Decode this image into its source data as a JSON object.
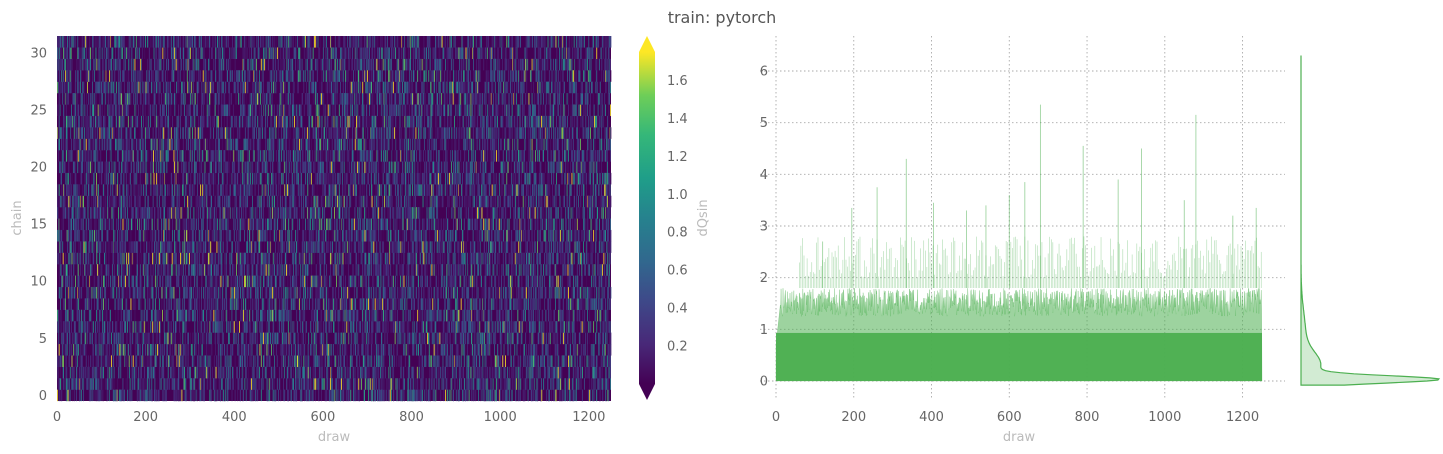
{
  "title": "train: pytorch",
  "colors": {
    "heat_low": "#440154",
    "trace": "#4caf50",
    "grid": "#aaaaaa"
  },
  "chart_data": [
    {
      "type": "heatmap",
      "xlabel": "draw",
      "ylabel": "chain",
      "xlim": [
        0,
        1250
      ],
      "ylim": [
        0,
        31
      ],
      "xticks": [
        0,
        200,
        400,
        600,
        800,
        1000,
        1200
      ],
      "yticks": [
        0,
        5,
        10,
        15,
        20,
        25,
        30
      ],
      "n_chains": 32,
      "n_draws": 1250,
      "colormap": "viridis",
      "colorbar": {
        "label": "dQsin",
        "range": [
          0,
          1.75
        ],
        "ticks": [
          0.2,
          0.4,
          0.6,
          0.8,
          1.0,
          1.2,
          1.4,
          1.6
        ],
        "extend": "both"
      }
    },
    {
      "type": "area",
      "xlabel": "draw",
      "ylabel": "",
      "xlim": [
        0,
        1250
      ],
      "ylim": [
        0,
        6.3
      ],
      "xticks": [
        0,
        200,
        400,
        600,
        800,
        1000,
        1200
      ],
      "yticks": [
        0,
        1,
        2,
        3,
        4,
        5,
        6
      ],
      "grid": true,
      "typical_range": [
        0,
        1.9
      ],
      "peaks": [
        {
          "x": 120,
          "y": 2.7
        },
        {
          "x": 195,
          "y": 3.35
        },
        {
          "x": 260,
          "y": 3.75
        },
        {
          "x": 335,
          "y": 4.3
        },
        {
          "x": 405,
          "y": 3.45
        },
        {
          "x": 490,
          "y": 3.3
        },
        {
          "x": 540,
          "y": 3.4
        },
        {
          "x": 600,
          "y": 3.6
        },
        {
          "x": 640,
          "y": 3.85
        },
        {
          "x": 680,
          "y": 5.35
        },
        {
          "x": 790,
          "y": 4.55
        },
        {
          "x": 880,
          "y": 3.9
        },
        {
          "x": 940,
          "y": 4.5
        },
        {
          "x": 1050,
          "y": 3.5
        },
        {
          "x": 1080,
          "y": 5.15
        },
        {
          "x": 1175,
          "y": 3.2
        },
        {
          "x": 1235,
          "y": 3.35
        }
      ],
      "marginal": "kde"
    }
  ]
}
